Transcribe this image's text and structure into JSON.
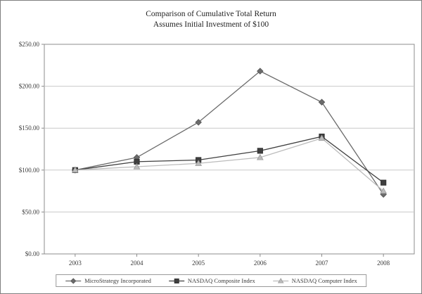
{
  "chart_data": {
    "type": "line",
    "title": "Comparison of Cumulative Total Return",
    "subtitle": "Assumes Initial Investment of $100",
    "categories": [
      "2003",
      "2004",
      "2005",
      "2006",
      "2007",
      "2008"
    ],
    "series": [
      {
        "name": "MicroStrategy Incorporated",
        "marker": "diamond",
        "color": "#6b6b6b",
        "marker_stroke": "#555555",
        "values": [
          100,
          115,
          157,
          218,
          181,
          71
        ]
      },
      {
        "name": "NASDAQ Composite Index",
        "marker": "square",
        "color": "#3f3f3f",
        "marker_stroke": "#2e2e2e",
        "values": [
          100,
          110,
          112,
          123,
          140,
          85
        ]
      },
      {
        "name": "NASDAQ Computer Index",
        "marker": "triangle",
        "color": "#bcbcbc",
        "marker_stroke": "#9a9a9a",
        "values": [
          100,
          104,
          108,
          115,
          138,
          75
        ]
      }
    ],
    "ylim": [
      0,
      250
    ],
    "y_ticks": [
      {
        "value": 0,
        "label": "$0.00"
      },
      {
        "value": 50,
        "label": "$50.00"
      },
      {
        "value": 100,
        "label": "$100.00"
      },
      {
        "value": 150,
        "label": "$150.00"
      },
      {
        "value": 200,
        "label": "$200.00"
      },
      {
        "value": 250,
        "label": "$250.00"
      }
    ],
    "grid": true,
    "legend_position": "bottom"
  },
  "colors": {
    "grid": "#c9c9c9",
    "axis": "#8c8c8c",
    "frame": "#7f7f7f",
    "text": "#3a3a3a",
    "plot_background": "#ffffff"
  }
}
